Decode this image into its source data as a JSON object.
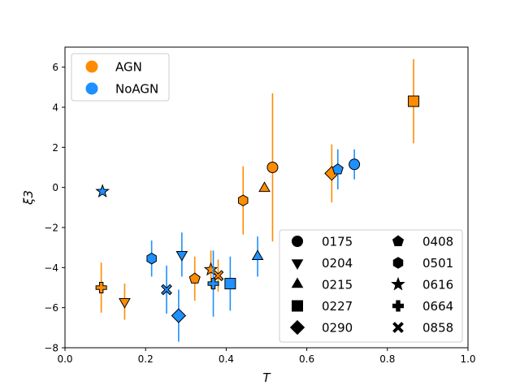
{
  "chart_data": {
    "type": "scatter",
    "title": "",
    "xlabel": "T",
    "ylabel": "ξ3",
    "xlim": [
      0.0,
      1.0
    ],
    "ylim": [
      -8,
      7
    ],
    "xticks": [
      0.0,
      0.2,
      0.4,
      0.6,
      0.8,
      1.0
    ],
    "xtick_labels": [
      "0.0",
      "0.2",
      "0.4",
      "0.6",
      "0.8",
      "1.0"
    ],
    "yticks": [
      -8,
      -6,
      -4,
      -2,
      0,
      2,
      4,
      6
    ],
    "ytick_labels": [
      "−8",
      "−6",
      "−4",
      "−2",
      "0",
      "2",
      "4",
      "6"
    ],
    "grid": false,
    "colors": {
      "AGN": "#ff8c00",
      "NoAGN": "#1e90ff"
    },
    "series": [
      {
        "name": "AGN",
        "points": [
          {
            "id": "0175",
            "marker": "circle",
            "x": 0.515,
            "y": 1.0,
            "yerr_low": 3.7,
            "yerr_high": 3.7
          },
          {
            "id": "0204",
            "marker": "triangle-down",
            "x": 0.148,
            "y": -5.7,
            "yerr_low": 0.9,
            "yerr_high": 0.9
          },
          {
            "id": "0215",
            "marker": "triangle-up",
            "x": 0.495,
            "y": -0.05,
            "yerr_low": 0,
            "yerr_high": 0
          },
          {
            "id": "0227",
            "marker": "square",
            "x": 0.865,
            "y": 4.3,
            "yerr_low": 2.1,
            "yerr_high": 2.1
          },
          {
            "id": "0290",
            "marker": "diamond",
            "x": 0.662,
            "y": 0.7,
            "yerr_low": 1.45,
            "yerr_high": 1.45
          },
          {
            "id": "0408",
            "marker": "pentagon",
            "x": 0.322,
            "y": -4.55,
            "yerr_low": 1.1,
            "yerr_high": 1.1
          },
          {
            "id": "0501",
            "marker": "hexagon",
            "x": 0.442,
            "y": -0.65,
            "yerr_low": 1.7,
            "yerr_high": 1.7
          },
          {
            "id": "0616",
            "marker": "star",
            "x": 0.362,
            "y": -4.1,
            "yerr_low": 0.95,
            "yerr_high": 0.95
          },
          {
            "id": "0664",
            "marker": "plus",
            "x": 0.09,
            "y": -5.0,
            "yerr_low": 1.25,
            "yerr_high": 1.25
          },
          {
            "id": "0858",
            "marker": "x",
            "x": 0.38,
            "y": -4.4,
            "yerr_low": 0.8,
            "yerr_high": 0.8
          }
        ]
      },
      {
        "name": "NoAGN",
        "points": [
          {
            "id": "0175",
            "marker": "circle",
            "x": 0.718,
            "y": 1.15,
            "yerr_low": 0.75,
            "yerr_high": 0.75
          },
          {
            "id": "0204",
            "marker": "triangle-down",
            "x": 0.29,
            "y": -3.35,
            "yerr_low": 1.1,
            "yerr_high": 1.1
          },
          {
            "id": "0215",
            "marker": "triangle-up",
            "x": 0.478,
            "y": -3.45,
            "yerr_low": 1.0,
            "yerr_high": 1.0
          },
          {
            "id": "0227",
            "marker": "square",
            "x": 0.41,
            "y": -4.8,
            "yerr_low": 1.35,
            "yerr_high": 1.35
          },
          {
            "id": "0290",
            "marker": "diamond",
            "x": 0.282,
            "y": -6.4,
            "yerr_low": 1.3,
            "yerr_high": 1.3
          },
          {
            "id": "0408",
            "marker": "pentagon",
            "x": 0.677,
            "y": 0.9,
            "yerr_low": 1.0,
            "yerr_high": 1.0
          },
          {
            "id": "0501",
            "marker": "hexagon",
            "x": 0.215,
            "y": -3.55,
            "yerr_low": 0.9,
            "yerr_high": 0.9
          },
          {
            "id": "0616",
            "marker": "star",
            "x": 0.093,
            "y": -0.2,
            "yerr_low": 0,
            "yerr_high": 0
          },
          {
            "id": "0664",
            "marker": "plus",
            "x": 0.368,
            "y": -4.8,
            "yerr_low": 1.65,
            "yerr_high": 1.65
          },
          {
            "id": "0858",
            "marker": "x",
            "x": 0.252,
            "y": -5.1,
            "yerr_low": 1.2,
            "yerr_high": 1.2
          }
        ]
      }
    ],
    "legend_color": {
      "position": "top-left",
      "entries": [
        "AGN",
        "NoAGN"
      ]
    },
    "legend_marker": {
      "position": "bottom-right",
      "columns": 2,
      "entries": [
        {
          "id": "0175",
          "marker": "circle"
        },
        {
          "id": "0204",
          "marker": "triangle-down"
        },
        {
          "id": "0215",
          "marker": "triangle-up"
        },
        {
          "id": "0227",
          "marker": "square"
        },
        {
          "id": "0290",
          "marker": "diamond"
        },
        {
          "id": "0408",
          "marker": "pentagon"
        },
        {
          "id": "0501",
          "marker": "hexagon"
        },
        {
          "id": "0616",
          "marker": "star"
        },
        {
          "id": "0664",
          "marker": "plus"
        },
        {
          "id": "0858",
          "marker": "x"
        }
      ]
    }
  }
}
